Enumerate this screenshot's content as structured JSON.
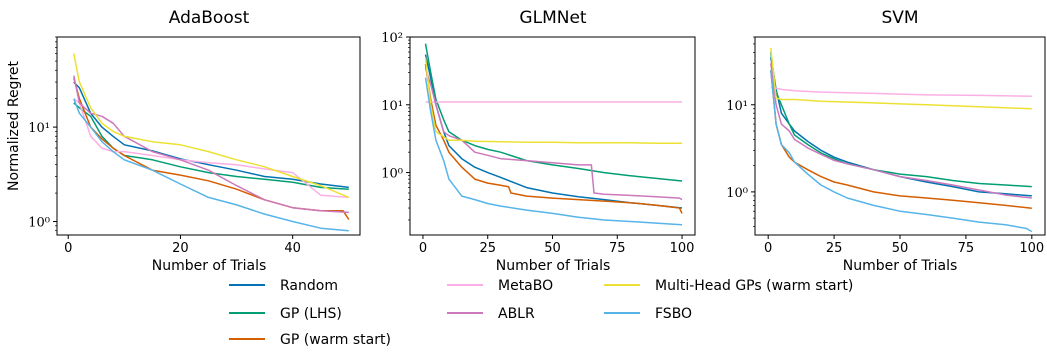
{
  "chart_data": [
    {
      "type": "line",
      "title": "AdaBoost",
      "xlabel": "Number of Trials",
      "ylabel": "Normalized Regret",
      "yscale": "log",
      "xlim": [
        -2,
        52
      ],
      "ylim": [
        0.72,
        90
      ],
      "xticks": [
        0,
        20,
        40
      ],
      "xtick_labels": [
        "0",
        "20",
        "40"
      ],
      "yticks": [
        1,
        10
      ],
      "ytick_labels": [
        "10⁰",
        "10¹"
      ],
      "series": [
        {
          "name": "Random",
          "x": [
            1,
            2,
            4,
            6,
            8,
            10,
            15,
            20,
            25,
            30,
            35,
            40,
            45,
            50
          ],
          "y": [
            30,
            26,
            14,
            10,
            8,
            6.5,
            5.6,
            4.6,
            4,
            3.5,
            3,
            2.8,
            2.5,
            2.3
          ]
        },
        {
          "name": "GP (LHS)",
          "x": [
            1,
            2,
            4,
            6,
            8,
            10,
            15,
            20,
            25,
            30,
            35,
            40,
            45,
            50
          ],
          "y": [
            18,
            16,
            13,
            8,
            6,
            5,
            4.5,
            3.8,
            3.3,
            3,
            2.8,
            2.6,
            2.3,
            2.2
          ]
        },
        {
          "name": "GP (warm start)",
          "x": [
            1,
            2,
            4,
            6,
            8,
            10,
            15,
            20,
            25,
            30,
            35,
            40,
            45,
            49,
            50
          ],
          "y": [
            33,
            20,
            10,
            7.5,
            6,
            5,
            3.5,
            3.1,
            2.7,
            2.2,
            1.7,
            1.4,
            1.3,
            1.3,
            1.05
          ]
        },
        {
          "name": "MetaBO",
          "x": [
            1,
            2,
            4,
            6,
            8,
            10,
            15,
            20,
            25,
            30,
            35,
            40,
            45,
            50
          ],
          "y": [
            20,
            18,
            8,
            6,
            5.5,
            5.5,
            5,
            4.5,
            4.2,
            4,
            3.6,
            3.3,
            1.9,
            1.8
          ]
        },
        {
          "name": "ABLR",
          "x": [
            1,
            2,
            4,
            6,
            8,
            10,
            15,
            20,
            25,
            30,
            35,
            40,
            45,
            50
          ],
          "y": [
            35,
            18,
            14,
            13,
            11,
            8,
            5.5,
            4.5,
            3.5,
            2.4,
            1.7,
            1.4,
            1.3,
            1.25
          ]
        },
        {
          "name": "Multi-Head GPs (warm start)",
          "x": [
            1,
            2,
            4,
            6,
            8,
            10,
            15,
            20,
            25,
            30,
            35,
            40,
            45,
            50
          ],
          "y": [
            60,
            30,
            16,
            11,
            9,
            8,
            7,
            6.5,
            5.5,
            4.5,
            3.8,
            3,
            2.4,
            1.8
          ]
        },
        {
          "name": "FSBO",
          "x": [
            1,
            2,
            4,
            6,
            8,
            10,
            15,
            20,
            25,
            30,
            35,
            40,
            45,
            50
          ],
          "y": [
            20,
            14,
            10,
            7,
            5.5,
            4.5,
            3.5,
            2.5,
            1.8,
            1.5,
            1.2,
            1,
            0.85,
            0.8
          ]
        }
      ]
    },
    {
      "type": "line",
      "title": "GLMNet",
      "xlabel": "Number of Trials",
      "ylabel": "",
      "yscale": "log",
      "xlim": [
        -5,
        105
      ],
      "ylim": [
        0.12,
        100
      ],
      "xticks": [
        0,
        25,
        50,
        75,
        100
      ],
      "xtick_labels": [
        "0",
        "25",
        "50",
        "75",
        "100"
      ],
      "yticks": [
        1,
        10,
        100
      ],
      "ytick_labels": [
        "10⁰",
        "10¹",
        "10²"
      ],
      "series": [
        {
          "name": "Random",
          "x": [
            1,
            3,
            5,
            8,
            10,
            15,
            20,
            25,
            30,
            40,
            50,
            60,
            70,
            80,
            90,
            100
          ],
          "y": [
            55,
            25,
            10,
            4,
            2.5,
            1.6,
            1.2,
            1,
            0.85,
            0.6,
            0.5,
            0.44,
            0.4,
            0.36,
            0.33,
            0.3
          ]
        },
        {
          "name": "GP (LHS)",
          "x": [
            1,
            3,
            5,
            8,
            10,
            15,
            20,
            25,
            30,
            40,
            50,
            60,
            70,
            80,
            90,
            100
          ],
          "y": [
            80,
            30,
            12,
            6,
            4,
            3,
            2.5,
            2.2,
            2,
            1.5,
            1.3,
            1.15,
            1,
            0.9,
            0.82,
            0.75
          ]
        },
        {
          "name": "GP (warm start)",
          "x": [
            1,
            3,
            5,
            8,
            10,
            15,
            20,
            25,
            30,
            33,
            34,
            40,
            50,
            60,
            70,
            80,
            90,
            99,
            100
          ],
          "y": [
            40,
            12,
            5,
            3,
            2,
            1.2,
            0.8,
            0.7,
            0.65,
            0.62,
            0.5,
            0.45,
            0.42,
            0.4,
            0.38,
            0.36,
            0.33,
            0.3,
            0.25
          ]
        },
        {
          "name": "MetaBO",
          "x": [
            1,
            3,
            5,
            10,
            20,
            40,
            60,
            80,
            100
          ],
          "y": [
            11,
            11,
            11,
            11,
            11,
            11,
            11,
            11,
            11
          ]
        },
        {
          "name": "ABLR",
          "x": [
            1,
            3,
            5,
            8,
            10,
            15,
            20,
            25,
            30,
            40,
            50,
            60,
            65,
            66,
            70,
            80,
            90,
            99,
            100
          ],
          "y": [
            35,
            20,
            10,
            4,
            3.5,
            3,
            2,
            1.8,
            1.6,
            1.5,
            1.4,
            1.3,
            1.3,
            0.5,
            0.48,
            0.46,
            0.44,
            0.42,
            0.4
          ]
        },
        {
          "name": "Multi-Head GPs (warm start)",
          "x": [
            1,
            3,
            5,
            10,
            15,
            20,
            30,
            40,
            50,
            60,
            70,
            80,
            90,
            100
          ],
          "y": [
            50,
            10,
            4,
            3,
            3,
            2.9,
            2.85,
            2.8,
            2.8,
            2.75,
            2.75,
            2.75,
            2.7,
            2.7
          ]
        },
        {
          "name": "FSBO",
          "x": [
            1,
            3,
            5,
            8,
            10,
            15,
            20,
            25,
            30,
            40,
            50,
            60,
            70,
            80,
            90,
            100
          ],
          "y": [
            25,
            8,
            3,
            1.5,
            0.8,
            0.45,
            0.4,
            0.35,
            0.32,
            0.28,
            0.25,
            0.22,
            0.2,
            0.19,
            0.18,
            0.17
          ]
        }
      ]
    },
    {
      "type": "line",
      "title": "SVM",
      "xlabel": "Number of Trials",
      "ylabel": "",
      "yscale": "log",
      "xlim": [
        -5,
        105
      ],
      "ylim": [
        0.32,
        60
      ],
      "xticks": [
        0,
        25,
        50,
        75,
        100
      ],
      "xtick_labels": [
        "0",
        "25",
        "50",
        "75",
        "100"
      ],
      "yticks": [
        1,
        10
      ],
      "ytick_labels": [
        "10⁰",
        "10¹"
      ],
      "series": [
        {
          "name": "Random",
          "x": [
            1,
            3,
            5,
            8,
            10,
            15,
            20,
            25,
            30,
            40,
            50,
            60,
            70,
            80,
            90,
            100
          ],
          "y": [
            35,
            15,
            8,
            6,
            5,
            3.8,
            3,
            2.5,
            2.2,
            1.8,
            1.5,
            1.3,
            1.15,
            1,
            0.95,
            0.9
          ]
        },
        {
          "name": "GP (LHS)",
          "x": [
            1,
            3,
            5,
            8,
            10,
            15,
            20,
            25,
            30,
            40,
            50,
            60,
            70,
            80,
            90,
            100
          ],
          "y": [
            40,
            14,
            10,
            6,
            4.5,
            3.5,
            2.8,
            2.4,
            2.1,
            1.8,
            1.6,
            1.5,
            1.35,
            1.25,
            1.2,
            1.15
          ]
        },
        {
          "name": "GP (warm start)",
          "x": [
            1,
            3,
            5,
            8,
            10,
            15,
            20,
            25,
            30,
            40,
            50,
            60,
            70,
            80,
            90,
            100
          ],
          "y": [
            25,
            6,
            3.5,
            2.5,
            2.2,
            1.8,
            1.5,
            1.3,
            1.2,
            1,
            0.9,
            0.85,
            0.8,
            0.75,
            0.7,
            0.65
          ]
        },
        {
          "name": "MetaBO",
          "x": [
            1,
            3,
            5,
            10,
            20,
            40,
            60,
            80,
            100
          ],
          "y": [
            16,
            15.5,
            15,
            14.5,
            14,
            13.5,
            13,
            12.8,
            12.5
          ]
        },
        {
          "name": "ABLR",
          "x": [
            1,
            3,
            5,
            8,
            10,
            15,
            20,
            25,
            30,
            40,
            50,
            60,
            70,
            80,
            90,
            100
          ],
          "y": [
            30,
            10,
            6,
            5,
            4,
            3.2,
            2.7,
            2.3,
            2.1,
            1.8,
            1.5,
            1.35,
            1.2,
            1.05,
            0.92,
            0.85
          ]
        },
        {
          "name": "Multi-Head GPs (warm start)",
          "x": [
            1,
            3,
            5,
            10,
            20,
            40,
            60,
            80,
            100
          ],
          "y": [
            45,
            12,
            11.5,
            11.5,
            11,
            10.5,
            10,
            9.5,
            9
          ]
        },
        {
          "name": "FSBO",
          "x": [
            1,
            3,
            5,
            8,
            10,
            15,
            20,
            25,
            30,
            40,
            50,
            60,
            70,
            80,
            90,
            98,
            100
          ],
          "y": [
            25,
            6,
            3.5,
            2.8,
            2.2,
            1.6,
            1.2,
            1,
            0.85,
            0.7,
            0.6,
            0.55,
            0.5,
            0.45,
            0.42,
            0.38,
            0.35
          ]
        }
      ]
    }
  ],
  "series_colors": {
    "Random": "#0173b2",
    "GP (LHS)": "#029e73",
    "GP (warm start)": "#d55e00",
    "MetaBO": "#fbafe4",
    "ABLR": "#cc78bc",
    "Multi-Head GPs (warm start)": "#ece133",
    "FSBO": "#56b4e9"
  },
  "legend": {
    "entries": [
      "Random",
      "GP (LHS)",
      "GP (warm start)",
      "MetaBO",
      "ABLR",
      "Multi-Head GPs (warm start)",
      "FSBO"
    ],
    "placement": "bottom"
  }
}
